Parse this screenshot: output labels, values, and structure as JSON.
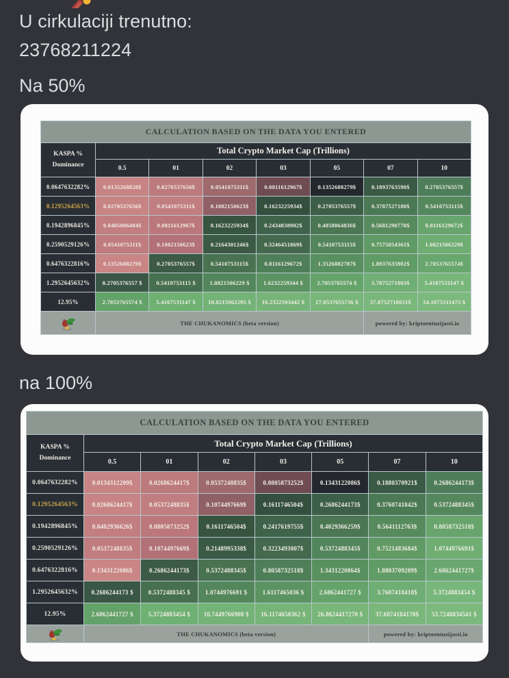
{
  "page": {
    "background": "#313338",
    "text_color": "#dbdee1",
    "emoji_name": "party-popper-emoji",
    "line1": "U cirkulaciji trenutno:",
    "line2": "23768211224",
    "label_table1": "Na 50%",
    "label_table2": "na 100%"
  },
  "table_template": {
    "title": "CALCULATION BASED ON THE DATA YOU ENTERED",
    "row_group_header": "KASPA %\nDominance",
    "column_group_header": "Total Crypto Market Cap (Trillions)",
    "columns": [
      "0.5",
      "01",
      "02",
      "03",
      "05",
      "07",
      "10"
    ],
    "footer_center": "THE CHUKANOMICS (beta version)",
    "footer_right": "powered by: kriptoentuzijasti.io",
    "logo": "chukar-bird-logo",
    "colors": {
      "header_bar": "#8e9893",
      "footer_bar": "#9aa29e",
      "dark_header_cell": "#282e34",
      "border": "#b9c7cd",
      "gold_dominance": "#cfa449",
      "current_price_cell": "#24282d"
    },
    "gold_row_index": 1,
    "cell_colors": [
      [
        "#c88484",
        "#bd7a7c",
        "#9e6a6e",
        "#6e4c52",
        "#24282d",
        "#3a5a46",
        "#4e7d59"
      ],
      [
        "#c88484",
        "#c17e80",
        "#8f6066",
        "#344f3e",
        "#3d5f48",
        "#4a7954",
        "#55875d"
      ],
      [
        "#c27e80",
        "#bb777b",
        "#37543f",
        "#3f634a",
        "#4b7753",
        "#578b5e",
        "#67a56c"
      ],
      [
        "#c07c7e",
        "#b27077",
        "#3b5a45",
        "#44694e",
        "#53855c",
        "#609a64",
        "#6fae73"
      ],
      [
        "#ca8585",
        "#3c5a46",
        "#487250",
        "#4f7f58",
        "#58905f",
        "#609c65",
        "#68a76e"
      ],
      [
        "#3a5745",
        "#46704f",
        "#53875b",
        "#5b9362",
        "#64a46b",
        "#6fae74",
        "#78b77b"
      ],
      [
        "#63a268",
        "#6fb173",
        "#74b377",
        "#76b478",
        "#78b67a",
        "#79b77b",
        "#7bb97d"
      ]
    ]
  },
  "tables": [
    {
      "context_label": "Na 50%",
      "rows": [
        {
          "dominance": "0.0647632282%",
          "values": [
            "0.0135268828$",
            "0.0270537656$",
            "0.0541075311$",
            "0.0811612967$",
            "0.1352688279$",
            "0.1893763590$",
            "0.2705376557$"
          ]
        },
        {
          "dominance": "0.1295264563%",
          "values": [
            "0.0270537656$",
            "0.0541075311$",
            "0.1082150623$",
            "0.1623225934$",
            "0.2705376557$",
            "0.3787527180$",
            "0.5410753115$"
          ]
        },
        {
          "dominance": "0.1942896845%",
          "values": [
            "0.0405806484$",
            "0.0811612967$",
            "0.1623225934$",
            "0.2434838902$",
            "0.4058064836$",
            "0.5681290770$",
            "0.8116129672$"
          ]
        },
        {
          "dominance": "0.2590529126%",
          "values": [
            "0.0541075311$",
            "0.1082150623$",
            "0.2164301246$",
            "0.3246451869$",
            "0.5410753115$",
            "0.7575054361$",
            "1.0821506229$"
          ]
        },
        {
          "dominance": "0.6476322816%",
          "values": [
            "0.1352688279$",
            "0.2705376557$",
            "0.5410753115$",
            "0.8116129672$",
            "1.3526882787$",
            "1.8937635902$",
            "2.7053765574$"
          ]
        },
        {
          "dominance": "1.2952645632%",
          "values": [
            "0.2705376557 $",
            "0.5410753115 $",
            "1.0821506229 $",
            "1.6232259344 $",
            "2.7053765574 $",
            "3.7875271803$",
            "5.4107531147 $"
          ]
        },
        {
          "dominance": "12.95%",
          "values": [
            "2.7053765574 $",
            "5.4107531147 $",
            "10.8215062295 $",
            "16.2322593442 $",
            "27.0537655736 $",
            "37.8752718031$",
            "54.1075311473 $"
          ]
        }
      ]
    },
    {
      "context_label": "na 100%",
      "rows": [
        {
          "dominance": "0.0647632282%",
          "values": [
            "0.0134312209$",
            "0.0268624417$",
            "0.0537248835$",
            "0.0805873252$",
            "0.1343122086$",
            "0.1880370921$",
            "0.2686244173$"
          ]
        },
        {
          "dominance": "0.1295264563%",
          "values": [
            "0.0268624417$",
            "0.0537248835$",
            "0.1074497669$",
            "0.1611746504$",
            "0.2686244173$",
            "0.3760741842$",
            "0.5372488345$"
          ]
        },
        {
          "dominance": "0.1942896845%",
          "values": [
            "0.0402936626$",
            "0.0805873252$",
            "0.1611746504$",
            "0.2417619755$",
            "0.4029366259$",
            "0.5641112763$",
            "0.8058732518$"
          ]
        },
        {
          "dominance": "0.2590529126%",
          "values": [
            "0.0537248835$",
            "0.1074497669$",
            "0.2148995338$",
            "0.3223493007$",
            "0.5372488345$",
            "0.7521483684$",
            "1.0744976691$"
          ]
        },
        {
          "dominance": "0.6476322816%",
          "values": [
            "0.1343122086$",
            "0.2686244173$",
            "0.5372488345$",
            "0.8058732518$",
            "1.3431220864$",
            "1.8803709209$",
            "2.6862441727$"
          ]
        },
        {
          "dominance": "1.2952645632%",
          "values": [
            "0.2686244173 $",
            "0.5372488345 $",
            "1.0744976691 $",
            "1.6117465036 $",
            "2.6862441727 $",
            "3.7607418418$",
            "5.3724883454 $"
          ]
        },
        {
          "dominance": "12.95%",
          "values": [
            "2.6862441727 $",
            "5.3724883454 $",
            "10.7449766908 $",
            "16.1174650362 $",
            "26.8624417270 $",
            "37.6074184178$",
            "53.7248834541 $"
          ]
        }
      ]
    }
  ]
}
